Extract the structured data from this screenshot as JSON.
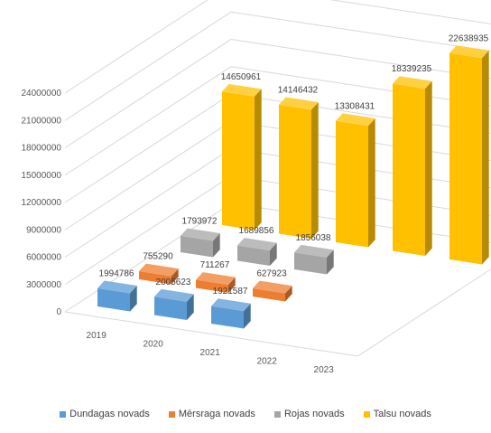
{
  "chart_data": {
    "type": "bar",
    "subtype": "3d-column",
    "title": "",
    "xlabel": "",
    "ylabel": "",
    "ylim": [
      0,
      24000000
    ],
    "yticks": [
      "24000000",
      "21000000",
      "18000000",
      "15000000",
      "12000000",
      "9000000",
      "6000000",
      "3000000",
      "0"
    ],
    "categories": [
      "2019",
      "2020",
      "2021",
      "2022",
      "2023"
    ],
    "legend_position": "bottom",
    "series": [
      {
        "name": "Dundagas novads",
        "color": "#5B9BD5",
        "values": [
          1994786,
          2005623,
          1921587,
          null,
          null
        ],
        "labels": [
          "1994786",
          "2005623",
          "1921587",
          "",
          ""
        ]
      },
      {
        "name": "Mērsraga novads",
        "color": "#ED7D31",
        "values": [
          755290,
          711267,
          627923,
          null,
          null
        ],
        "labels": [
          "755290",
          "711267",
          "627923",
          "",
          ""
        ]
      },
      {
        "name": "Rojas novads",
        "color": "#A5A5A5",
        "values": [
          1793972,
          1689856,
          1856038,
          null,
          null
        ],
        "labels": [
          "1793972",
          "1689856",
          "1856038",
          "",
          ""
        ]
      },
      {
        "name": "Talsu novads",
        "color": "#FFC000",
        "values": [
          14650961,
          14146432,
          13308431,
          18339235,
          22638935
        ],
        "labels": [
          "14650961",
          "14146432",
          "13308431",
          "18339235",
          "22638935"
        ]
      }
    ]
  }
}
